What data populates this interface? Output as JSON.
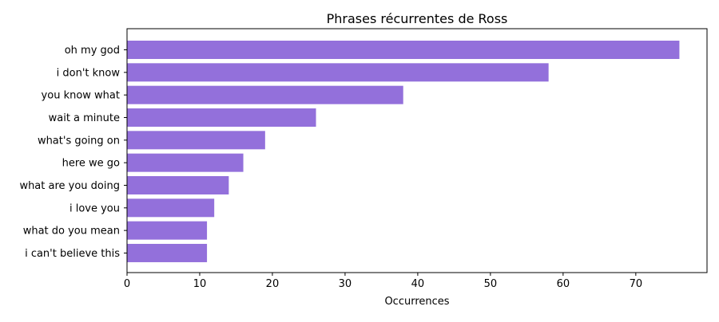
{
  "chart_data": {
    "type": "bar",
    "orientation": "horizontal",
    "title": "Phrases récurrentes de Ross",
    "xlabel": "Occurrences",
    "ylabel": "",
    "categories": [
      "oh my god",
      "i don't know",
      "you know what",
      "wait a minute",
      "what's going on",
      "here we go",
      "what are you doing",
      "i love you",
      "what do you mean",
      "i can't believe this"
    ],
    "values": [
      76,
      58,
      38,
      26,
      19,
      16,
      14,
      12,
      11,
      11
    ],
    "xlim": [
      0,
      80
    ],
    "xticks": [
      "0",
      "10",
      "20",
      "30",
      "40",
      "50",
      "60",
      "70"
    ],
    "bar_color": "#9370db",
    "grid": false,
    "legend": "none"
  }
}
